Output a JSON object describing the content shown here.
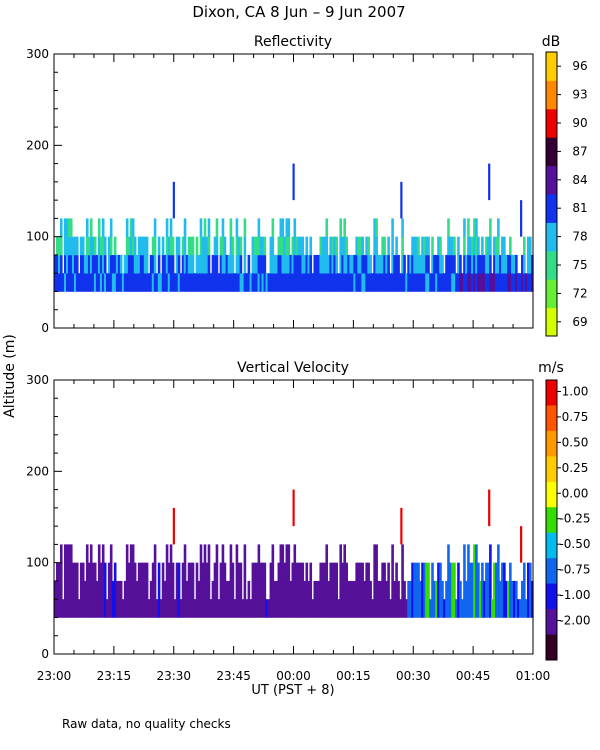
{
  "title": "Dixon, CA  8 Jun –  9 Jun 2007",
  "footnote": "Raw data, no quality checks",
  "chart_data": [
    {
      "type": "heatmap",
      "title": "Reflectivity",
      "ylabel": "Altitude (m)",
      "xlabel": "UT  (PST + 8)",
      "x_range": [
        0,
        120
      ],
      "ylim": [
        0,
        300
      ],
      "y_ticks": [
        0,
        100,
        200,
        300
      ],
      "x_ticks": [
        "23:00",
        "23:15",
        "23:30",
        "23:45",
        "00:00",
        "00:15",
        "00:30",
        "00:45",
        "01:00"
      ],
      "colorbar": {
        "unit": "dB",
        "labels": [
          "69",
          "72",
          "75",
          "78",
          "81",
          "84",
          "87",
          "90",
          "93",
          "96"
        ],
        "colors": [
          "#d4ff00",
          "#66ee33",
          "#33dd88",
          "#22bbee",
          "#1133ee",
          "#551199",
          "#330033",
          "#ee0000",
          "#ff8800",
          "#ffcc00"
        ]
      },
      "echo_base_m": 40,
      "echo_top_typical_m": [
        60,
        120
      ],
      "echo_top_max_m": 180,
      "spikes": [
        {
          "t_min": 30,
          "top_m": 160
        },
        {
          "t_min": 60,
          "top_m": 180
        },
        {
          "t_min": 87,
          "top_m": 160
        },
        {
          "t_min": 109,
          "top_m": 180
        },
        {
          "t_min": 117,
          "top_m": 140
        }
      ],
      "dominant_values_db": [
        75,
        78,
        81
      ]
    },
    {
      "type": "heatmap",
      "title": "Vertical Velocity",
      "ylabel": "Altitude (m)",
      "xlabel": "UT  (PST + 8)",
      "x_range": [
        0,
        120
      ],
      "ylim": [
        0,
        300
      ],
      "y_ticks": [
        0,
        100,
        200,
        300
      ],
      "x_ticks": [
        "23:00",
        "23:15",
        "23:30",
        "23:45",
        "00:00",
        "00:15",
        "00:30",
        "00:45",
        "01:00"
      ],
      "colorbar": {
        "unit": "m/s",
        "labels": [
          "1.00",
          "0.75",
          "0.50",
          "0.25",
          "0.00",
          "-0.25",
          "-0.50",
          "-0.75",
          "-1.00",
          "-2.00"
        ],
        "colors": [
          "#ee0000",
          "#ff5500",
          "#ff9900",
          "#ffcc00",
          "#ffff00",
          "#33dd00",
          "#00bbee",
          "#1166ee",
          "#1111ee",
          "#551199",
          "#330022"
        ]
      },
      "echo_base_m": 40,
      "echo_top_typical_m": [
        60,
        120
      ],
      "echo_top_max_m": 180,
      "dominant_values_ms": [
        -0.75,
        -1.0
      ]
    }
  ]
}
